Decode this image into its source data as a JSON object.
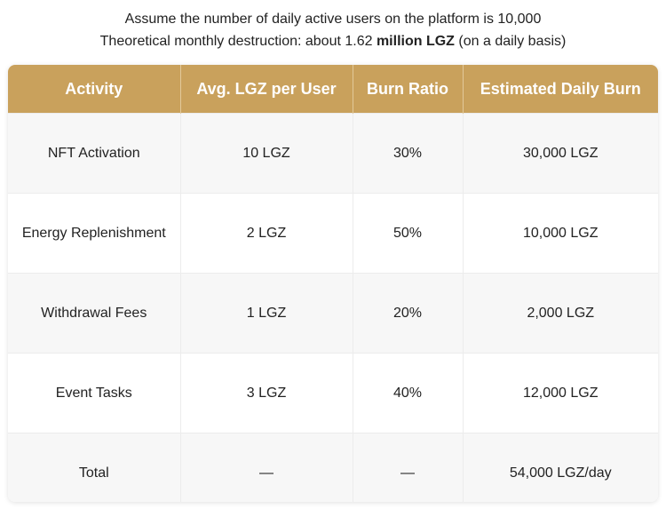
{
  "header": {
    "line1": "Assume the number of daily active users on the platform is 10,000",
    "line2": [
      "Theoretical monthly destruction: about 1.62 ",
      "million LGZ",
      " (on a daily basis)"
    ]
  },
  "table": {
    "columns": [
      "Activity",
      "Avg. LGZ per User",
      "Burn Ratio",
      "Estimated Daily Burn"
    ],
    "rows": [
      [
        "NFT Activation",
        "10 LGZ",
        "30%",
        "30,000 LGZ"
      ],
      [
        "Energy Replenishment",
        "2 LGZ",
        "50%",
        "10,000 LGZ"
      ],
      [
        "Withdrawal Fees",
        "1 LGZ",
        "20%",
        "2,000 LGZ"
      ],
      [
        "Event Tasks",
        "3 LGZ",
        "40%",
        "12,000 LGZ"
      ],
      [
        "Total",
        "—",
        "—",
        "54,000 LGZ/day"
      ]
    ]
  }
}
